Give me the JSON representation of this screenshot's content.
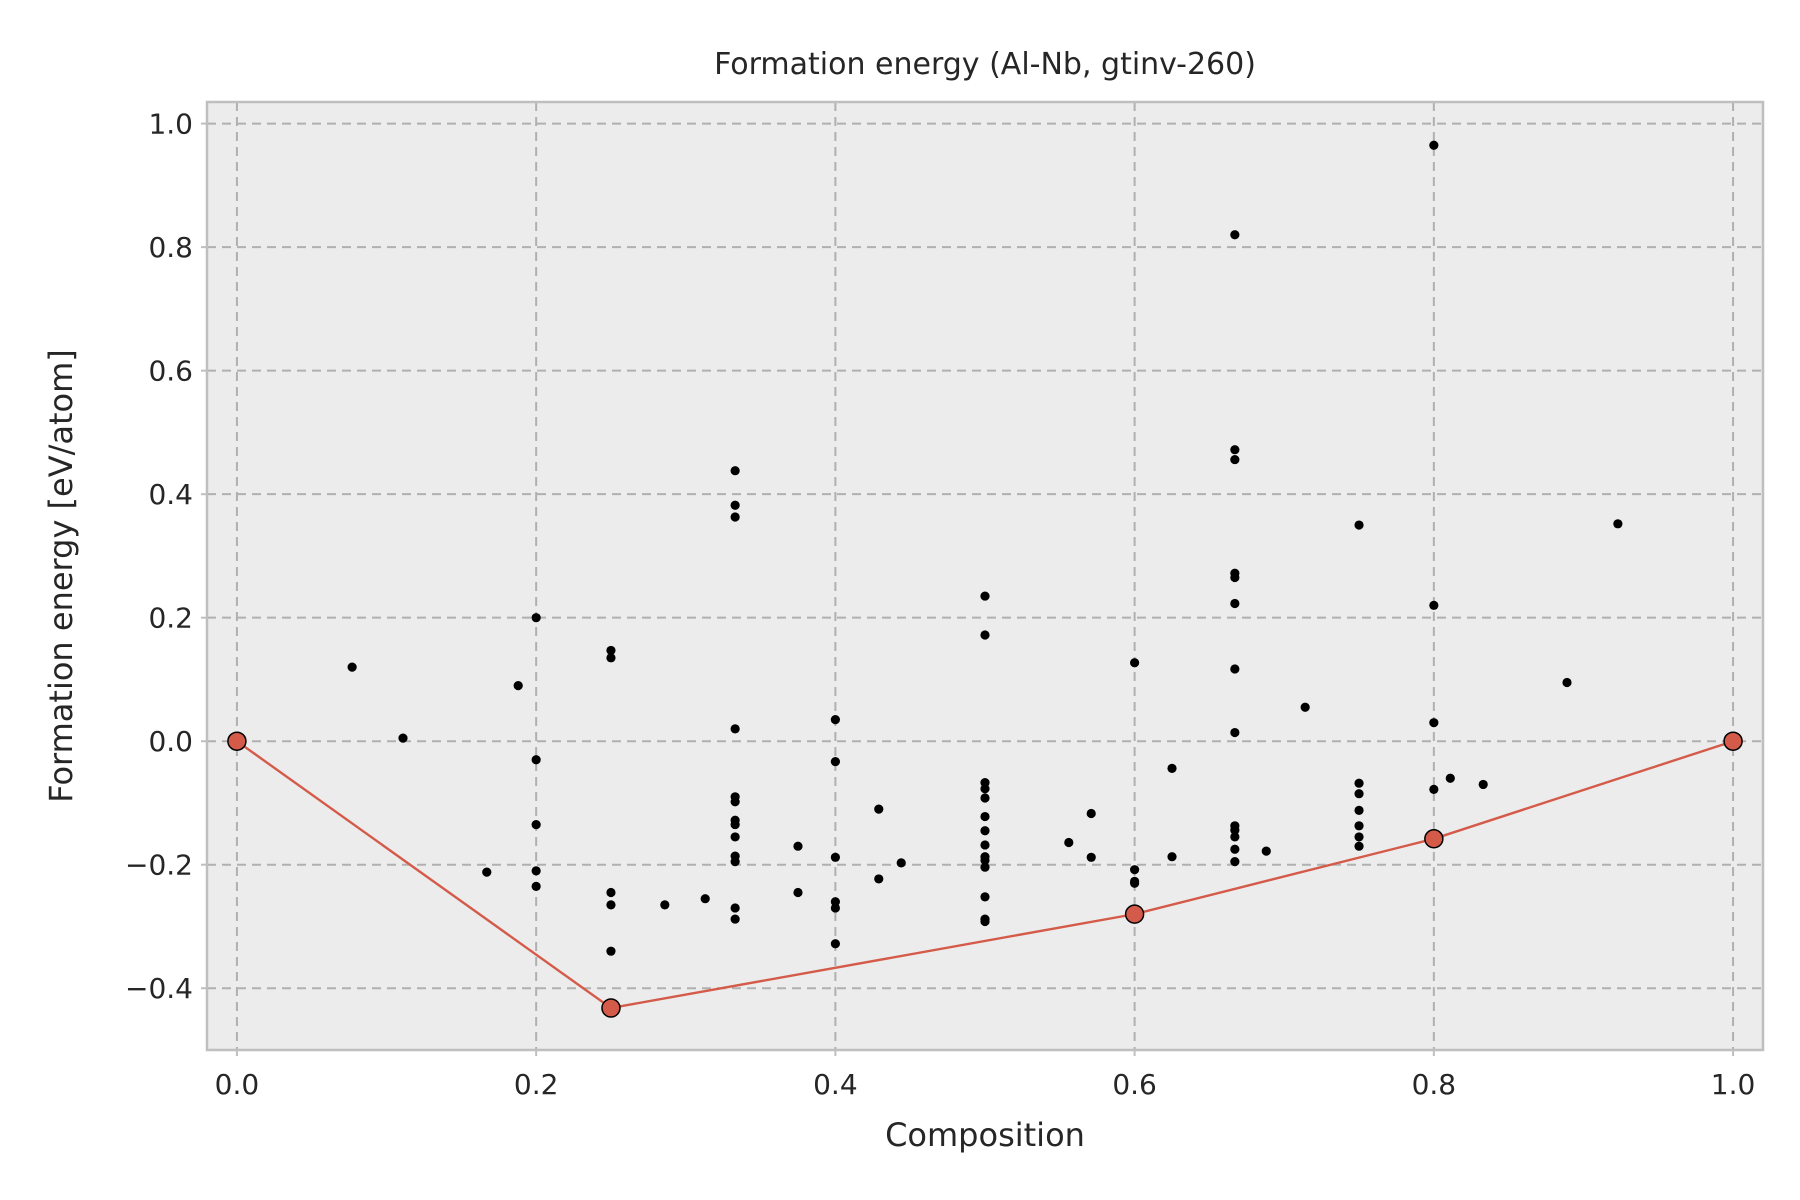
{
  "chart_data": {
    "type": "scatter",
    "title": "Formation energy (Al-Nb, gtinv-260)",
    "xlabel": "Composition",
    "ylabel": "Formation energy [eV/atom]",
    "xlim": [
      -0.02,
      1.02
    ],
    "ylim": [
      -0.5,
      1.035
    ],
    "grid": true,
    "x_ticks": [
      0.0,
      0.2,
      0.4,
      0.6,
      0.8,
      1.0
    ],
    "x_tick_labels": [
      "0.0",
      "0.2",
      "0.4",
      "0.6",
      "0.8",
      "1.0"
    ],
    "y_ticks": [
      -0.4,
      -0.2,
      0.0,
      0.2,
      0.4,
      0.6,
      0.8,
      1.0
    ],
    "y_tick_labels": [
      "−0.4",
      "−0.2",
      "0.0",
      "0.2",
      "0.4",
      "0.6",
      "0.8",
      "1.0"
    ],
    "colors": {
      "plot_background": "#ececec",
      "frame": "#bfbfbf",
      "grid": "#b0b0b0",
      "points": "#000000",
      "hull": "#d45b49"
    },
    "series": [
      {
        "role": "structures",
        "points": [
          [
            0.077,
            0.12
          ],
          [
            0.111,
            0.005
          ],
          [
            0.167,
            -0.212
          ],
          [
            0.188,
            0.09
          ],
          [
            0.2,
            0.2
          ],
          [
            0.2,
            -0.03
          ],
          [
            0.2,
            -0.135
          ],
          [
            0.2,
            -0.21
          ],
          [
            0.2,
            -0.235
          ],
          [
            0.25,
            0.147
          ],
          [
            0.25,
            0.135
          ],
          [
            0.25,
            -0.245
          ],
          [
            0.25,
            -0.265
          ],
          [
            0.25,
            -0.34
          ],
          [
            0.286,
            -0.265
          ],
          [
            0.313,
            -0.255
          ],
          [
            0.333,
            0.438
          ],
          [
            0.333,
            0.382
          ],
          [
            0.333,
            0.363
          ],
          [
            0.333,
            0.02
          ],
          [
            0.333,
            -0.09
          ],
          [
            0.333,
            -0.098
          ],
          [
            0.333,
            -0.128
          ],
          [
            0.333,
            -0.135
          ],
          [
            0.333,
            -0.155
          ],
          [
            0.333,
            -0.186
          ],
          [
            0.333,
            -0.195
          ],
          [
            0.333,
            -0.27
          ],
          [
            0.333,
            -0.288
          ],
          [
            0.375,
            -0.17
          ],
          [
            0.375,
            -0.245
          ],
          [
            0.4,
            0.035
          ],
          [
            0.4,
            -0.033
          ],
          [
            0.4,
            -0.188
          ],
          [
            0.4,
            -0.26
          ],
          [
            0.4,
            -0.27
          ],
          [
            0.4,
            -0.328
          ],
          [
            0.429,
            -0.11
          ],
          [
            0.429,
            -0.223
          ],
          [
            0.444,
            -0.197
          ],
          [
            0.5,
            0.235
          ],
          [
            0.5,
            0.172
          ],
          [
            0.5,
            -0.067
          ],
          [
            0.5,
            -0.077
          ],
          [
            0.5,
            -0.092
          ],
          [
            0.5,
            -0.122
          ],
          [
            0.5,
            -0.145
          ],
          [
            0.5,
            -0.168
          ],
          [
            0.5,
            -0.187
          ],
          [
            0.5,
            -0.193
          ],
          [
            0.5,
            -0.204
          ],
          [
            0.5,
            -0.252
          ],
          [
            0.5,
            -0.288
          ],
          [
            0.5,
            -0.292
          ],
          [
            0.556,
            -0.164
          ],
          [
            0.571,
            -0.117
          ],
          [
            0.571,
            -0.188
          ],
          [
            0.6,
            0.127
          ],
          [
            0.6,
            -0.208
          ],
          [
            0.6,
            -0.227
          ],
          [
            0.6,
            -0.23
          ],
          [
            0.625,
            -0.044
          ],
          [
            0.625,
            -0.187
          ],
          [
            0.667,
            0.82
          ],
          [
            0.667,
            0.472
          ],
          [
            0.667,
            0.456
          ],
          [
            0.667,
            0.272
          ],
          [
            0.667,
            0.265
          ],
          [
            0.667,
            0.223
          ],
          [
            0.667,
            0.117
          ],
          [
            0.667,
            0.014
          ],
          [
            0.667,
            -0.137
          ],
          [
            0.667,
            -0.144
          ],
          [
            0.667,
            -0.155
          ],
          [
            0.667,
            -0.175
          ],
          [
            0.667,
            -0.195
          ],
          [
            0.688,
            -0.178
          ],
          [
            0.714,
            0.055
          ],
          [
            0.75,
            0.35
          ],
          [
            0.75,
            -0.068
          ],
          [
            0.75,
            -0.085
          ],
          [
            0.75,
            -0.112
          ],
          [
            0.75,
            -0.137
          ],
          [
            0.75,
            -0.155
          ],
          [
            0.75,
            -0.17
          ],
          [
            0.8,
            0.965
          ],
          [
            0.8,
            0.22
          ],
          [
            0.8,
            0.03
          ],
          [
            0.8,
            -0.078
          ],
          [
            0.811,
            -0.06
          ],
          [
            0.833,
            -0.07
          ],
          [
            0.889,
            0.095
          ],
          [
            0.923,
            0.352
          ]
        ]
      },
      {
        "role": "convex-hull",
        "points": [
          [
            0.0,
            0.0
          ],
          [
            0.25,
            -0.432
          ],
          [
            0.6,
            -0.28
          ],
          [
            0.8,
            -0.158
          ],
          [
            1.0,
            0.0
          ]
        ]
      }
    ]
  }
}
